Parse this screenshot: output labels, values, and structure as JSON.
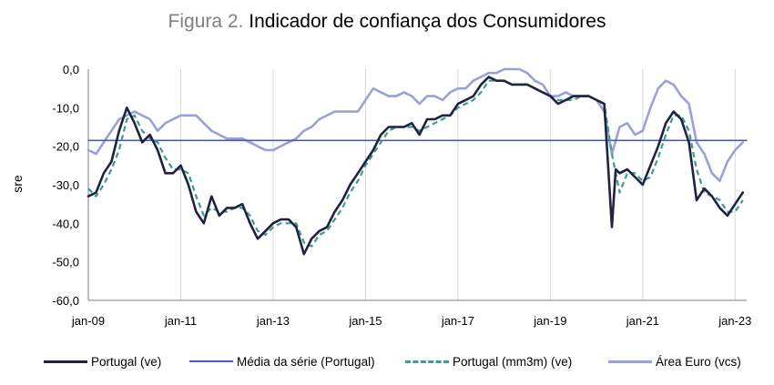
{
  "title": {
    "prefix": "Figura 2.",
    "main": "Indicador de confiança dos Consumidores"
  },
  "chart_data": {
    "type": "line",
    "ylabel": "sre",
    "xlabel": "",
    "ylim": [
      -60,
      0
    ],
    "yticks": [
      "0,0",
      "-10,0",
      "-20,0",
      "-30,0",
      "-40,0",
      "-50,0",
      "-60,0"
    ],
    "yticks_values": [
      0,
      -10,
      -20,
      -30,
      -40,
      -50,
      -60
    ],
    "xlim": [
      "2009-01",
      "2023-04"
    ],
    "xticks": [
      "jan-09",
      "jan-11",
      "jan-13",
      "jan-15",
      "jan-17",
      "jan-19",
      "jan-21",
      "jan-23"
    ],
    "xticks_dates": [
      "2009-01",
      "2011-01",
      "2013-01",
      "2015-01",
      "2017-01",
      "2019-01",
      "2021-01",
      "2023-01"
    ],
    "vertical_gridlines": true,
    "horizontal_gridlines": false,
    "legend_position": "bottom",
    "series": [
      {
        "name": "Portugal (ve)",
        "color": "#1f2340",
        "style": "solid",
        "points": [
          [
            "2009-01",
            -33
          ],
          [
            "2009-03",
            -32
          ],
          [
            "2009-05",
            -27
          ],
          [
            "2009-07",
            -24
          ],
          [
            "2009-09",
            -16
          ],
          [
            "2009-11",
            -10
          ],
          [
            "2010-01",
            -14
          ],
          [
            "2010-03",
            -19
          ],
          [
            "2010-05",
            -17
          ],
          [
            "2010-07",
            -21
          ],
          [
            "2010-09",
            -27
          ],
          [
            "2010-11",
            -27
          ],
          [
            "2011-01",
            -25
          ],
          [
            "2011-03",
            -30
          ],
          [
            "2011-05",
            -37
          ],
          [
            "2011-07",
            -40
          ],
          [
            "2011-09",
            -33
          ],
          [
            "2011-11",
            -38
          ],
          [
            "2012-01",
            -36
          ],
          [
            "2012-03",
            -36
          ],
          [
            "2012-05",
            -35
          ],
          [
            "2012-07",
            -40
          ],
          [
            "2012-09",
            -44
          ],
          [
            "2012-11",
            -42
          ],
          [
            "2013-01",
            -40
          ],
          [
            "2013-03",
            -39
          ],
          [
            "2013-05",
            -39
          ],
          [
            "2013-07",
            -41
          ],
          [
            "2013-09",
            -48
          ],
          [
            "2013-11",
            -44
          ],
          [
            "2014-01",
            -42
          ],
          [
            "2014-03",
            -41
          ],
          [
            "2014-05",
            -37
          ],
          [
            "2014-07",
            -34
          ],
          [
            "2014-09",
            -30
          ],
          [
            "2014-11",
            -27
          ],
          [
            "2015-01",
            -24
          ],
          [
            "2015-03",
            -21
          ],
          [
            "2015-05",
            -17
          ],
          [
            "2015-07",
            -15
          ],
          [
            "2015-09",
            -15
          ],
          [
            "2015-11",
            -15
          ],
          [
            "2016-01",
            -14
          ],
          [
            "2016-03",
            -17
          ],
          [
            "2016-05",
            -13
          ],
          [
            "2016-07",
            -13
          ],
          [
            "2016-09",
            -12
          ],
          [
            "2016-11",
            -12
          ],
          [
            "2017-01",
            -9
          ],
          [
            "2017-03",
            -8
          ],
          [
            "2017-05",
            -7
          ],
          [
            "2017-07",
            -4
          ],
          [
            "2017-09",
            -2
          ],
          [
            "2017-11",
            -3
          ],
          [
            "2018-01",
            -3
          ],
          [
            "2018-03",
            -4
          ],
          [
            "2018-05",
            -4
          ],
          [
            "2018-07",
            -4
          ],
          [
            "2018-09",
            -5
          ],
          [
            "2018-11",
            -6
          ],
          [
            "2019-01",
            -7
          ],
          [
            "2019-03",
            -9
          ],
          [
            "2019-05",
            -8
          ],
          [
            "2019-07",
            -7
          ],
          [
            "2019-09",
            -7
          ],
          [
            "2019-11",
            -7
          ],
          [
            "2020-01",
            -8
          ],
          [
            "2020-03",
            -9
          ],
          [
            "2020-05",
            -41
          ],
          [
            "2020-06",
            -26
          ],
          [
            "2020-07",
            -27
          ],
          [
            "2020-09",
            -26
          ],
          [
            "2020-11",
            -28
          ],
          [
            "2021-01",
            -30
          ],
          [
            "2021-03",
            -25
          ],
          [
            "2021-05",
            -20
          ],
          [
            "2021-07",
            -14
          ],
          [
            "2021-09",
            -11
          ],
          [
            "2021-11",
            -13
          ],
          [
            "2022-01",
            -19
          ],
          [
            "2022-03",
            -34
          ],
          [
            "2022-05",
            -31
          ],
          [
            "2022-07",
            -33
          ],
          [
            "2022-09",
            -36
          ],
          [
            "2022-11",
            -38
          ],
          [
            "2023-01",
            -35
          ],
          [
            "2023-03",
            -32
          ]
        ]
      },
      {
        "name": "Média da série (Portugal)",
        "color": "#4a5bb5",
        "style": "solid",
        "points": [
          [
            "2009-01",
            -18.5
          ],
          [
            "2023-04",
            -18.5
          ]
        ]
      },
      {
        "name": "Portugal (mm3m) (ve)",
        "color": "#3d9b94",
        "style": "dashed",
        "points": [
          [
            "2009-01",
            -31
          ],
          [
            "2009-03",
            -33
          ],
          [
            "2009-05",
            -30
          ],
          [
            "2009-07",
            -26
          ],
          [
            "2009-09",
            -21
          ],
          [
            "2009-11",
            -13
          ],
          [
            "2010-01",
            -12
          ],
          [
            "2010-03",
            -16
          ],
          [
            "2010-05",
            -18
          ],
          [
            "2010-07",
            -19
          ],
          [
            "2010-09",
            -23
          ],
          [
            "2010-11",
            -26
          ],
          [
            "2011-01",
            -26
          ],
          [
            "2011-03",
            -27
          ],
          [
            "2011-05",
            -33
          ],
          [
            "2011-07",
            -38
          ],
          [
            "2011-09",
            -36
          ],
          [
            "2011-11",
            -37
          ],
          [
            "2012-01",
            -37
          ],
          [
            "2012-03",
            -36
          ],
          [
            "2012-05",
            -36
          ],
          [
            "2012-07",
            -38
          ],
          [
            "2012-09",
            -42
          ],
          [
            "2012-11",
            -43
          ],
          [
            "2013-01",
            -41
          ],
          [
            "2013-03",
            -40
          ],
          [
            "2013-05",
            -40
          ],
          [
            "2013-07",
            -40
          ],
          [
            "2013-09",
            -45
          ],
          [
            "2013-11",
            -46
          ],
          [
            "2014-01",
            -43
          ],
          [
            "2014-03",
            -42
          ],
          [
            "2014-05",
            -39
          ],
          [
            "2014-07",
            -36
          ],
          [
            "2014-09",
            -32
          ],
          [
            "2014-11",
            -29
          ],
          [
            "2015-01",
            -25
          ],
          [
            "2015-03",
            -22
          ],
          [
            "2015-05",
            -19
          ],
          [
            "2015-07",
            -16
          ],
          [
            "2015-09",
            -15
          ],
          [
            "2015-11",
            -15
          ],
          [
            "2016-01",
            -15
          ],
          [
            "2016-03",
            -16
          ],
          [
            "2016-05",
            -15
          ],
          [
            "2016-07",
            -14
          ],
          [
            "2016-09",
            -13
          ],
          [
            "2016-11",
            -12
          ],
          [
            "2017-01",
            -10
          ],
          [
            "2017-03",
            -9
          ],
          [
            "2017-05",
            -8
          ],
          [
            "2017-07",
            -6
          ],
          [
            "2017-09",
            -3
          ],
          [
            "2017-11",
            -3
          ],
          [
            "2018-01",
            -3
          ],
          [
            "2018-03",
            -4
          ],
          [
            "2018-05",
            -4
          ],
          [
            "2018-07",
            -4
          ],
          [
            "2018-09",
            -5
          ],
          [
            "2018-11",
            -6
          ],
          [
            "2019-01",
            -7
          ],
          [
            "2019-03",
            -8
          ],
          [
            "2019-05",
            -8
          ],
          [
            "2019-07",
            -8
          ],
          [
            "2019-09",
            -7
          ],
          [
            "2019-11",
            -7
          ],
          [
            "2020-01",
            -8
          ],
          [
            "2020-03",
            -9
          ],
          [
            "2020-05",
            -22
          ],
          [
            "2020-07",
            -32
          ],
          [
            "2020-09",
            -27
          ],
          [
            "2020-11",
            -27
          ],
          [
            "2021-01",
            -29
          ],
          [
            "2021-03",
            -28
          ],
          [
            "2021-05",
            -23
          ],
          [
            "2021-07",
            -17
          ],
          [
            "2021-09",
            -12
          ],
          [
            "2021-11",
            -12
          ],
          [
            "2022-01",
            -16
          ],
          [
            "2022-03",
            -26
          ],
          [
            "2022-05",
            -32
          ],
          [
            "2022-07",
            -33
          ],
          [
            "2022-09",
            -34
          ],
          [
            "2022-11",
            -37
          ],
          [
            "2023-01",
            -37
          ],
          [
            "2023-03",
            -34
          ]
        ]
      },
      {
        "name": "Área Euro (vcs)",
        "color": "#9aa1d8",
        "style": "solid",
        "points": [
          [
            "2009-01",
            -21
          ],
          [
            "2009-03",
            -22
          ],
          [
            "2009-05",
            -19
          ],
          [
            "2009-07",
            -16
          ],
          [
            "2009-09",
            -13
          ],
          [
            "2009-11",
            -12
          ],
          [
            "2010-01",
            -11
          ],
          [
            "2010-03",
            -12
          ],
          [
            "2010-05",
            -13
          ],
          [
            "2010-07",
            -16
          ],
          [
            "2010-09",
            -14
          ],
          [
            "2010-11",
            -13
          ],
          [
            "2011-01",
            -12
          ],
          [
            "2011-03",
            -12
          ],
          [
            "2011-05",
            -12
          ],
          [
            "2011-07",
            -14
          ],
          [
            "2011-09",
            -16
          ],
          [
            "2011-11",
            -17
          ],
          [
            "2012-01",
            -18
          ],
          [
            "2012-03",
            -18
          ],
          [
            "2012-05",
            -18
          ],
          [
            "2012-07",
            -19
          ],
          [
            "2012-09",
            -20
          ],
          [
            "2012-11",
            -21
          ],
          [
            "2013-01",
            -21
          ],
          [
            "2013-03",
            -20
          ],
          [
            "2013-05",
            -19
          ],
          [
            "2013-07",
            -18
          ],
          [
            "2013-09",
            -16
          ],
          [
            "2013-11",
            -15
          ],
          [
            "2014-01",
            -13
          ],
          [
            "2014-03",
            -12
          ],
          [
            "2014-05",
            -11
          ],
          [
            "2014-07",
            -11
          ],
          [
            "2014-09",
            -11
          ],
          [
            "2014-11",
            -11
          ],
          [
            "2015-01",
            -8
          ],
          [
            "2015-03",
            -5
          ],
          [
            "2015-05",
            -6
          ],
          [
            "2015-07",
            -7
          ],
          [
            "2015-09",
            -7
          ],
          [
            "2015-11",
            -6
          ],
          [
            "2016-01",
            -7
          ],
          [
            "2016-03",
            -9
          ],
          [
            "2016-05",
            -7
          ],
          [
            "2016-07",
            -7
          ],
          [
            "2016-09",
            -8
          ],
          [
            "2016-11",
            -6
          ],
          [
            "2017-01",
            -5
          ],
          [
            "2017-03",
            -5
          ],
          [
            "2017-05",
            -3
          ],
          [
            "2017-07",
            -2
          ],
          [
            "2017-09",
            -1
          ],
          [
            "2017-11",
            -1
          ],
          [
            "2018-01",
            0
          ],
          [
            "2018-03",
            0
          ],
          [
            "2018-05",
            0
          ],
          [
            "2018-07",
            -1
          ],
          [
            "2018-09",
            -3
          ],
          [
            "2018-11",
            -4
          ],
          [
            "2019-01",
            -7
          ],
          [
            "2019-03",
            -7
          ],
          [
            "2019-05",
            -6
          ],
          [
            "2019-07",
            -7
          ],
          [
            "2019-09",
            -7
          ],
          [
            "2019-11",
            -7
          ],
          [
            "2020-01",
            -8
          ],
          [
            "2020-03",
            -11
          ],
          [
            "2020-05",
            -22
          ],
          [
            "2020-07",
            -15
          ],
          [
            "2020-09",
            -14
          ],
          [
            "2020-11",
            -17
          ],
          [
            "2021-01",
            -16
          ],
          [
            "2021-03",
            -10
          ],
          [
            "2021-05",
            -5
          ],
          [
            "2021-07",
            -3
          ],
          [
            "2021-09",
            -4
          ],
          [
            "2021-11",
            -7
          ],
          [
            "2022-01",
            -9
          ],
          [
            "2022-03",
            -19
          ],
          [
            "2022-05",
            -22
          ],
          [
            "2022-07",
            -27
          ],
          [
            "2022-09",
            -29
          ],
          [
            "2022-11",
            -24
          ],
          [
            "2023-01",
            -21
          ],
          [
            "2023-03",
            -19
          ]
        ]
      }
    ]
  }
}
